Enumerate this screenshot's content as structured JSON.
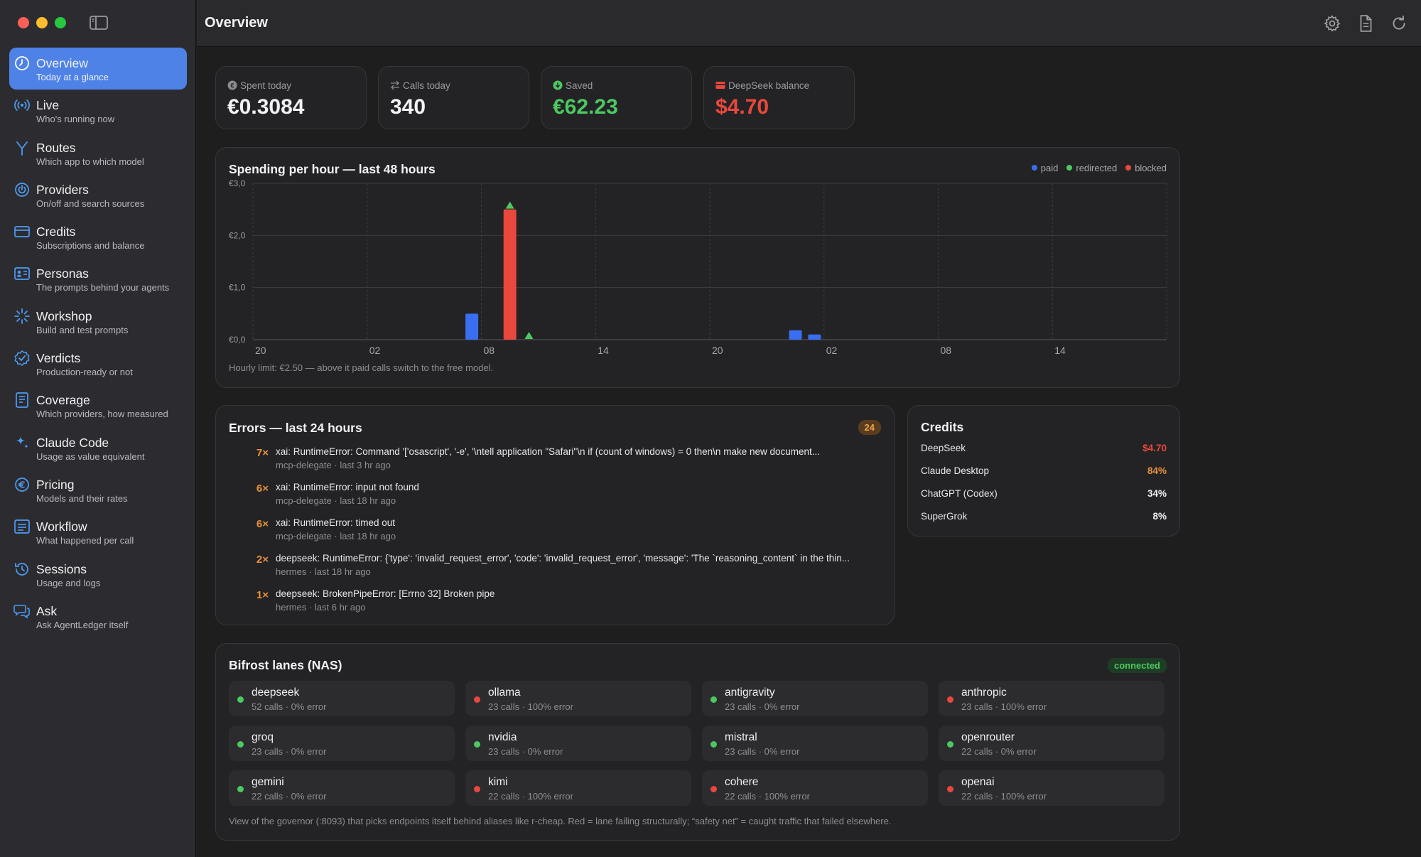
{
  "window": {
    "title": "Overview"
  },
  "colors": {
    "accent": "#4e82e6",
    "green": "#4cc860",
    "red": "#e8483d",
    "orange": "#e8923a",
    "paid": "#3a6ef0",
    "redirected": "#4cc860",
    "blocked": "#e8483d"
  },
  "sidebar": {
    "items": [
      {
        "label": "Overview",
        "sub": "Today at a glance",
        "icon": "clock-icon"
      },
      {
        "label": "Live",
        "sub": "Who's running now",
        "icon": "broadcast-icon"
      },
      {
        "label": "Routes",
        "sub": "Which app to which model",
        "icon": "fork-icon"
      },
      {
        "label": "Providers",
        "sub": "On/off and search sources",
        "icon": "power-icon"
      },
      {
        "label": "Credits",
        "sub": "Subscriptions and balance",
        "icon": "card-icon"
      },
      {
        "label": "Personas",
        "sub": "The prompts behind your agents",
        "icon": "person-card-icon"
      },
      {
        "label": "Workshop",
        "sub": "Build and test prompts",
        "icon": "sparkle-burst-icon"
      },
      {
        "label": "Verdicts",
        "sub": "Production-ready or not",
        "icon": "check-seal-icon"
      },
      {
        "label": "Coverage",
        "sub": "Which providers, how measured",
        "icon": "document-icon"
      },
      {
        "label": "Claude Code",
        "sub": "Usage as value equivalent",
        "icon": "sparkles-icon"
      },
      {
        "label": "Pricing",
        "sub": "Models and their rates",
        "icon": "euro-icon"
      },
      {
        "label": "Workflow",
        "sub": "What happened per call",
        "icon": "list-window-icon"
      },
      {
        "label": "Sessions",
        "sub": "Usage and logs",
        "icon": "history-icon"
      },
      {
        "label": "Ask",
        "sub": "Ask AgentLedger itself",
        "icon": "chat-bubbles-icon"
      }
    ]
  },
  "stats": [
    {
      "label": "Spent today",
      "value": "€0.3084",
      "color": "#f2f2f4",
      "icon": "euro-circle-icon"
    },
    {
      "label": "Calls today",
      "value": "340",
      "color": "#f2f2f4",
      "icon": "arrows-swap-icon"
    },
    {
      "label": "Saved",
      "value": "€62.23",
      "color": "#4cc860",
      "icon": "down-circle-icon"
    },
    {
      "label": "DeepSeek balance",
      "value": "$4.70",
      "color": "#e8483d",
      "icon": "card-icon"
    }
  ],
  "chart": {
    "title": "Spending per hour — last 48 hours",
    "legend": [
      "paid",
      "redirected",
      "blocked"
    ],
    "note": "Hourly limit: €2.50 — above it paid calls switch to the free model."
  },
  "chart_data": {
    "type": "bar",
    "title": "Spending per hour — last 48 hours",
    "ylim": [
      0,
      3
    ],
    "y_ticks": [
      "€0,0",
      "€1,0",
      "€2,0",
      "€3,0"
    ],
    "x_ticks": [
      "20",
      "02",
      "08",
      "14",
      "20",
      "02",
      "08",
      "14"
    ],
    "series": [
      {
        "name": "paid",
        "points": [
          {
            "hour": 11,
            "value": 0.5
          },
          {
            "hour": 28,
            "value": 0.18
          },
          {
            "hour": 29,
            "value": 0.1
          }
        ]
      },
      {
        "name": "blocked",
        "points": [
          {
            "hour": 13,
            "value": 2.5
          }
        ]
      },
      {
        "name": "redirected",
        "markers": [
          {
            "hour": 13,
            "value": 2.5
          },
          {
            "hour": 14,
            "value": 0.0
          }
        ]
      }
    ]
  },
  "errors": {
    "title": "Errors — last 24 hours",
    "count": "24",
    "items": [
      {
        "count": "7×",
        "message": "xai: RuntimeError: Command '['osascript', '-e', '\\ntell application \"Safari\"\\n    if (count of windows) = 0 then\\n        make new document...",
        "meta": "mcp-delegate · last 3 hr ago"
      },
      {
        "count": "6×",
        "message": "xai: RuntimeError: input not found",
        "meta": "mcp-delegate · last 18 hr ago"
      },
      {
        "count": "6×",
        "message": "xai: RuntimeError: timed out",
        "meta": "mcp-delegate · last 18 hr ago"
      },
      {
        "count": "2×",
        "message": "deepseek: RuntimeError: {'type': 'invalid_request_error', 'code': 'invalid_request_error', 'message': 'The `reasoning_content` in the thin...",
        "meta": "hermes · last 18 hr ago"
      },
      {
        "count": "1×",
        "message": "deepseek: BrokenPipeError: [Errno 32] Broken pipe",
        "meta": "hermes · last 6 hr ago"
      }
    ]
  },
  "credits": {
    "title": "Credits",
    "items": [
      {
        "name": "DeepSeek",
        "value": "$4.70",
        "color": "#e8483d"
      },
      {
        "name": "Claude Desktop",
        "value": "84%",
        "color": "#e8923a"
      },
      {
        "name": "ChatGPT (Codex)",
        "value": "34%",
        "color": "#f2f2f4"
      },
      {
        "name": "SuperGrok",
        "value": "8%",
        "color": "#f2f2f4"
      }
    ]
  },
  "lanes": {
    "title": "Bifrost lanes (NAS)",
    "status": "connected",
    "note": "View of the governor (:8093) that picks endpoints itself behind aliases like r-cheap. Red = lane failing structurally; “safety net” = caught traffic that failed elsewhere.",
    "items": [
      {
        "name": "deepseek",
        "meta": "52 calls · 0% error",
        "status": "ok"
      },
      {
        "name": "ollama",
        "meta": "23 calls · 100% error",
        "status": "fail"
      },
      {
        "name": "antigravity",
        "meta": "23 calls · 0% error",
        "status": "ok"
      },
      {
        "name": "anthropic",
        "meta": "23 calls · 100% error",
        "status": "fail"
      },
      {
        "name": "groq",
        "meta": "23 calls · 0% error",
        "status": "ok"
      },
      {
        "name": "nvidia",
        "meta": "23 calls · 0% error",
        "status": "ok"
      },
      {
        "name": "mistral",
        "meta": "23 calls · 0% error",
        "status": "ok"
      },
      {
        "name": "openrouter",
        "meta": "22 calls · 0% error",
        "status": "ok"
      },
      {
        "name": "gemini",
        "meta": "22 calls · 0% error",
        "status": "ok"
      },
      {
        "name": "kimi",
        "meta": "22 calls · 100% error",
        "status": "fail"
      },
      {
        "name": "cohere",
        "meta": "22 calls · 100% error",
        "status": "fail"
      },
      {
        "name": "openai",
        "meta": "22 calls · 100% error",
        "status": "fail"
      }
    ]
  }
}
